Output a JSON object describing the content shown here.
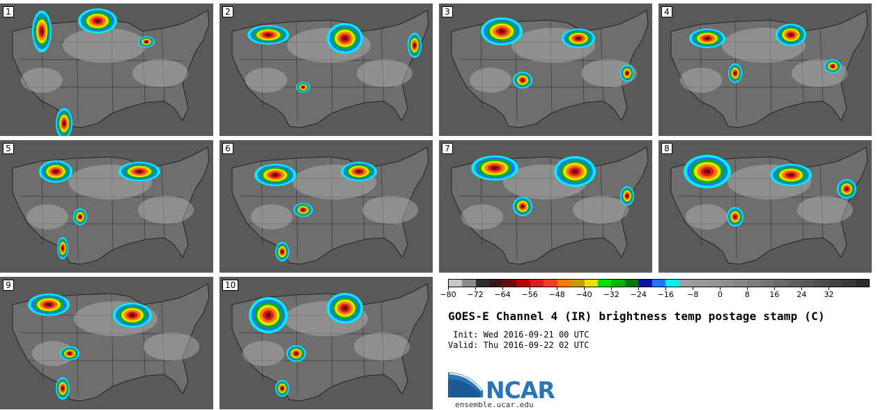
{
  "colors": {
    "ground_gray": "#6e6e6e",
    "cloud_gray": "#b8b8b8",
    "coastline": "#111111",
    "ncar_blue": "#2a74b8"
  },
  "panels": [
    {
      "label": "1"
    },
    {
      "label": "2"
    },
    {
      "label": "3"
    },
    {
      "label": "4"
    },
    {
      "label": "5"
    },
    {
      "label": "6"
    },
    {
      "label": "7"
    },
    {
      "label": "8"
    },
    {
      "label": "9"
    },
    {
      "label": "10"
    }
  ],
  "colorbar": {
    "colors": [
      "#c8c8c8",
      "#8c8c8c",
      "#2d2d2d",
      "#3c1414",
      "#6a0a0a",
      "#b40000",
      "#d81e1e",
      "#ff3a1e",
      "#ff7a00",
      "#c89a00",
      "#f0e000",
      "#00e000",
      "#00b400",
      "#007800",
      "#0a14a0",
      "#1e78ff",
      "#00f0f0",
      "#9e9e9e",
      "#9a9a9a",
      "#959595",
      "#8e8e8e",
      "#868686",
      "#7d7d7d",
      "#747474",
      "#6a6a6a",
      "#606060",
      "#565656",
      "#4c4c4c",
      "#424242",
      "#383838",
      "#2c2c2c"
    ],
    "tick_labels": [
      "−80",
      "−72",
      "−64",
      "−56",
      "−48",
      "−40",
      "−32",
      "−24",
      "−16",
      "−8",
      "0",
      "8",
      "16",
      "24",
      "32"
    ]
  },
  "title": "GOES-E Channel 4 (IR) brightness temp postage stamp (C)",
  "init_line": " Init: Wed 2016-09-21 00 UTC",
  "valid_line": "Valid: Thu 2016-09-22 02 UTC",
  "logo": {
    "text": "NCAR",
    "url": "ensemble.ucar.edu"
  }
}
